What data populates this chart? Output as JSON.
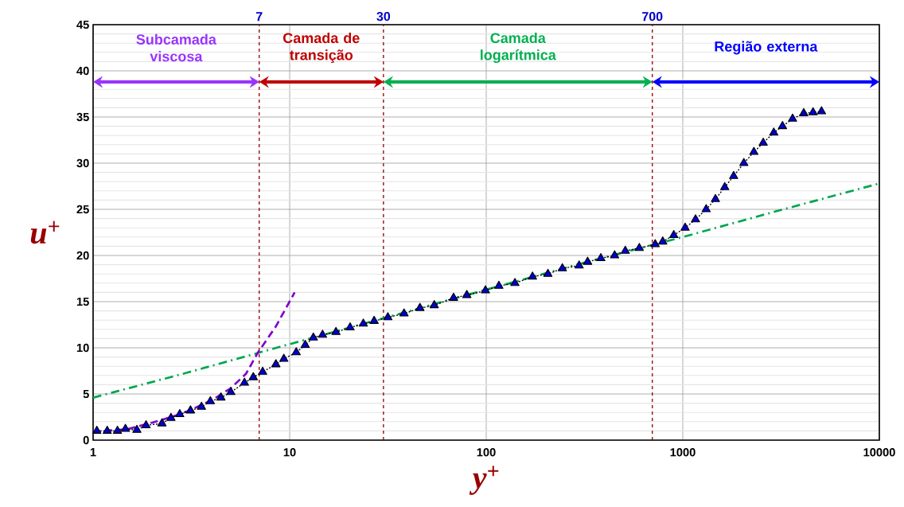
{
  "chart_data": {
    "type": "line",
    "xlabel": "y$^{+}$",
    "ylabel": "u$^{+}$",
    "log": "x",
    "xlim": [
      1,
      10000
    ],
    "xticks": [
      1,
      10,
      100,
      1000,
      10000
    ],
    "ylim": [
      0,
      45
    ],
    "yticks": [
      0,
      5,
      10,
      15,
      20,
      25,
      30,
      35,
      40,
      45
    ],
    "grid": true,
    "series": [
      {
        "color": "#0000cc",
        "marker": "triangle",
        "line_style": "dotted",
        "x": [
          1.045,
          1.18,
          1.33,
          1.46,
          1.67,
          1.86,
          2.24,
          2.49,
          2.76,
          3.13,
          3.56,
          3.95,
          4.47,
          5.02,
          5.89,
          6.53,
          7.29,
          8.51,
          9.34,
          10.8,
          12.0,
          13.2,
          14.7,
          17.2,
          20.3,
          23.7,
          26.9,
          31.6,
          38.2,
          46.0,
          54.4,
          68.2,
          79.7,
          99.1,
          116,
          140,
          172,
          206,
          244,
          297,
          328,
          383,
          450,
          510,
          601,
          724,
          791,
          900,
          1028,
          1161,
          1315,
          1466,
          1635,
          1815,
          2045,
          2300,
          2566,
          2904,
          3216,
          3620,
          4125,
          4600,
          5080
        ],
        "values": [
          1.0,
          1.0,
          1.0,
          1.2,
          1.1,
          1.6,
          1.8,
          2.4,
          2.8,
          3.2,
          3.6,
          4.2,
          4.6,
          5.2,
          6.2,
          6.8,
          7.4,
          8.2,
          8.8,
          9.5,
          10.3,
          11.1,
          11.4,
          11.7,
          12.2,
          12.6,
          12.9,
          13.3,
          13.7,
          14.3,
          14.6,
          15.4,
          15.7,
          16.2,
          16.7,
          17.0,
          17.7,
          18.0,
          18.6,
          18.9,
          19.3,
          19.7,
          20.0,
          20.5,
          20.8,
          21.2,
          21.5,
          22.2,
          23.0,
          23.9,
          25.0,
          26.1,
          27.4,
          28.6,
          30.0,
          31.2,
          32.2,
          33.3,
          34.0,
          34.8,
          35.4,
          35.5,
          35.6
        ]
      },
      {
        "color": "#00a650",
        "marker": "none",
        "line_style": "dashdot",
        "x": [
          1,
          3,
          10,
          30,
          100,
          300,
          1000,
          3000,
          10000
        ],
        "values": [
          4.6,
          7.3,
          10.4,
          13.2,
          16.3,
          19.1,
          22.0,
          24.8,
          27.8
        ]
      },
      {
        "color": "#7f00cc",
        "marker": "none",
        "line_style": "dashed",
        "x": [
          1,
          1.5,
          2,
          2.5,
          3,
          4,
          5,
          6,
          6.9,
          8.5,
          10.6
        ],
        "values": [
          0.9,
          1.2,
          1.9,
          2.5,
          3.1,
          4.3,
          5.6,
          7.2,
          9.5,
          12.3,
          16
        ]
      }
    ],
    "ref_lines": [
      {
        "axis": "x",
        "value": 7,
        "label": "7",
        "color": "#990000",
        "line_style": "dashed"
      },
      {
        "axis": "x",
        "value": 30,
        "label": "30",
        "color": "#990000",
        "line_style": "dashed"
      },
      {
        "axis": "x",
        "value": 700,
        "label": "700",
        "color": "#990000",
        "line_style": "dashed"
      }
    ],
    "annotations": [
      "Subcamada viscosa",
      "Camada de transição",
      "Camada logarítmica",
      "Região externa"
    ]
  }
}
